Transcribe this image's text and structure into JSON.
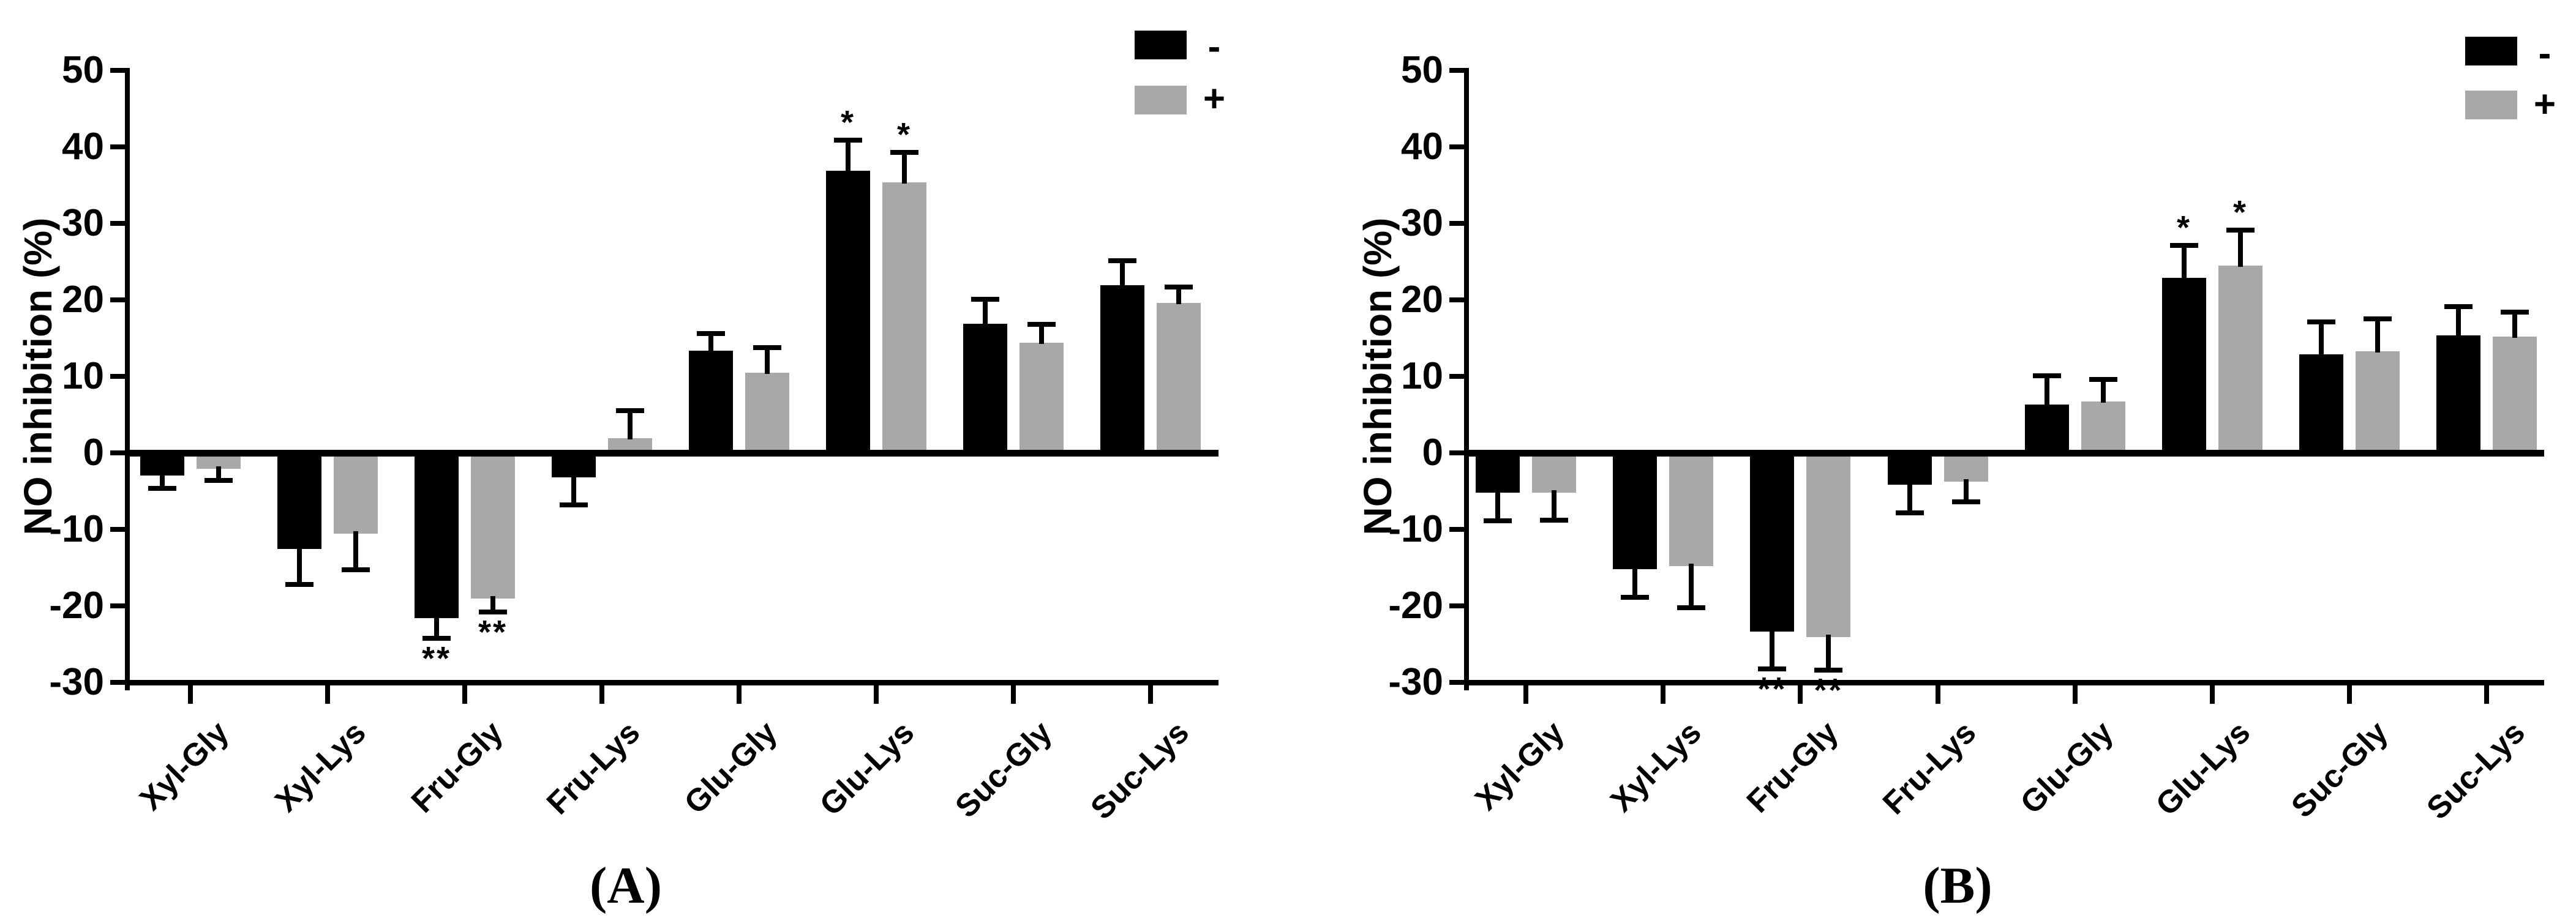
{
  "figure": {
    "background": "#ffffff",
    "axis_color": "#000000",
    "bar_colors": {
      "minus": "#000000",
      "plus": "#a8a8a8"
    }
  },
  "chart_data": [
    {
      "type": "bar",
      "panel": "A",
      "caption": "(A)",
      "ylabel": "NO inhibition (%)",
      "ylim": [
        -30,
        50
      ],
      "yticks": [
        50,
        40,
        30,
        20,
        10,
        0,
        -10,
        -20,
        -30
      ],
      "grid": false,
      "legend_position": "top-right",
      "categories": [
        "Xyl-Gly",
        "Xyl-Lys",
        "Fru-Gly",
        "Fru-Lys",
        "Glu-Gly",
        "Glu-Lys",
        "Suc-Gly",
        "Suc-Lys"
      ],
      "series": [
        {
          "name": "-",
          "color": "#000000",
          "values": [
            -2.8,
            -12.4,
            -21.4,
            -3.0,
            13.4,
            36.9,
            16.9,
            21.9
          ],
          "errors": [
            1.8,
            4.8,
            2.8,
            3.8,
            2.2,
            4.0,
            3.2,
            3.2
          ],
          "significance": [
            "",
            "",
            "**",
            "",
            "",
            "*",
            "",
            ""
          ]
        },
        {
          "name": "+",
          "color": "#a8a8a8",
          "values": [
            -1.9,
            -10.4,
            -18.9,
            1.9,
            10.5,
            35.4,
            14.4,
            19.6
          ],
          "errors": [
            1.7,
            4.9,
            1.9,
            3.6,
            3.3,
            3.9,
            2.4,
            2.1
          ],
          "significance": [
            "",
            "",
            "**",
            "",
            "",
            "*",
            "",
            ""
          ]
        }
      ]
    },
    {
      "type": "bar",
      "panel": "B",
      "caption": "(B)",
      "ylabel": "NO inhibition (%)",
      "ylim": [
        -30,
        50
      ],
      "yticks": [
        50,
        40,
        30,
        20,
        10,
        0,
        -10,
        -20,
        -30
      ],
      "grid": false,
      "legend_position": "top-right",
      "categories": [
        "Xyl-Gly",
        "Xyl-Lys",
        "Fru-Gly",
        "Fru-Lys",
        "Glu-Gly",
        "Glu-Lys",
        "Suc-Gly",
        "Suc-Lys"
      ],
      "series": [
        {
          "name": "-",
          "color": "#000000",
          "values": [
            -5.0,
            -15.0,
            -23.2,
            -4.0,
            6.3,
            22.9,
            12.9,
            15.4
          ],
          "errors": [
            3.9,
            3.9,
            5.0,
            3.8,
            3.8,
            4.2,
            4.2,
            3.7
          ],
          "significance": [
            "",
            "",
            "**",
            "",
            "",
            "*",
            "",
            ""
          ]
        },
        {
          "name": "+",
          "color": "#a8a8a8",
          "values": [
            -5.0,
            -14.6,
            -23.9,
            -3.6,
            6.7,
            24.5,
            13.3,
            15.2
          ],
          "errors": [
            3.8,
            5.6,
            4.5,
            2.8,
            2.9,
            4.6,
            4.2,
            3.2
          ],
          "significance": [
            "",
            "",
            "**",
            "",
            "",
            "*",
            "",
            ""
          ]
        }
      ]
    }
  ]
}
